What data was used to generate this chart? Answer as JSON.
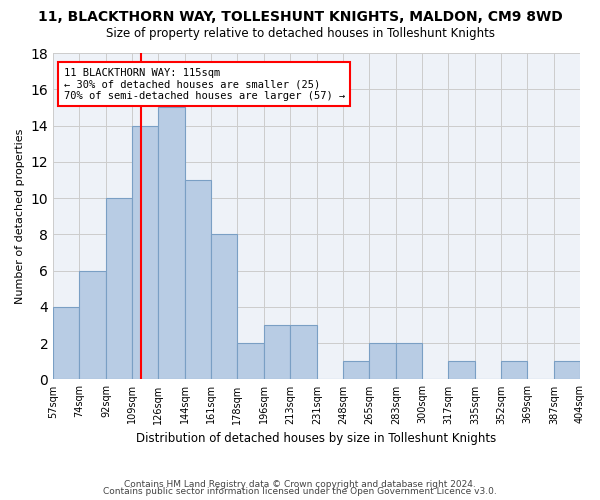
{
  "title": "11, BLACKTHORN WAY, TOLLESHUNT KNIGHTS, MALDON, CM9 8WD",
  "subtitle": "Size of property relative to detached houses in Tolleshunt Knights",
  "xlabel": "Distribution of detached houses by size in Tolleshunt Knights",
  "ylabel": "Number of detached properties",
  "bar_edges": [
    57,
    74,
    92,
    109,
    126,
    144,
    161,
    178,
    196,
    213,
    231,
    248,
    265,
    283,
    300,
    317,
    335,
    352,
    369,
    387,
    404
  ],
  "bar_heights": [
    4,
    6,
    10,
    14,
    15,
    11,
    8,
    2,
    3,
    3,
    0,
    1,
    2,
    2,
    0,
    1,
    0,
    1,
    0,
    1
  ],
  "bar_color": "#b8cce4",
  "bar_edge_color": "#7a9fc4",
  "property_line_x": 115,
  "property_line_color": "red",
  "annotation_text": "11 BLACKTHORN WAY: 115sqm\n← 30% of detached houses are smaller (25)\n70% of semi-detached houses are larger (57) →",
  "annotation_box_color": "red",
  "ylim": [
    0,
    18
  ],
  "yticks": [
    0,
    2,
    4,
    6,
    8,
    10,
    12,
    14,
    16,
    18
  ],
  "grid_color": "#cccccc",
  "bg_color": "#eef2f8",
  "footer1": "Contains HM Land Registry data © Crown copyright and database right 2024.",
  "footer2": "Contains public sector information licensed under the Open Government Licence v3.0."
}
